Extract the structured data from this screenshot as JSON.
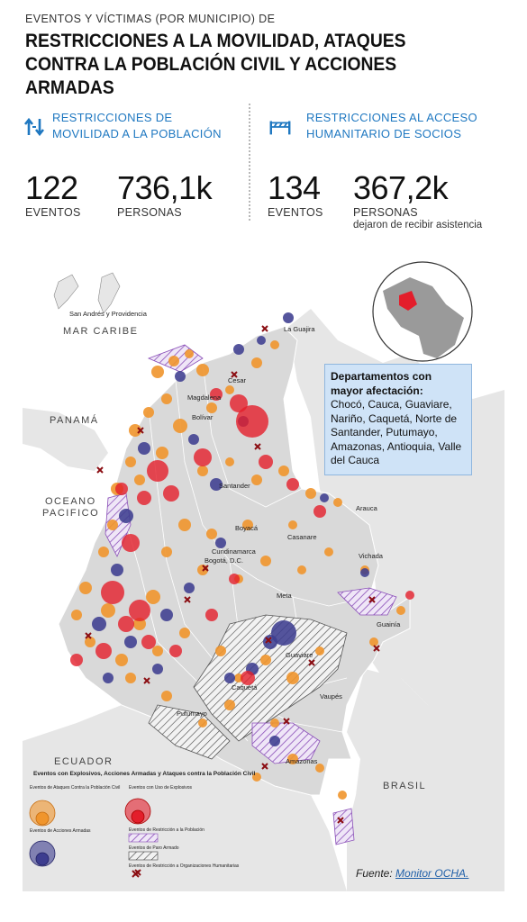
{
  "header": {
    "kicker": "EVENTOS Y VÍCTIMAS (POR MUNICIPIO) DE",
    "title": "RESTRICCIONES A LA MOVILIDAD, ATAQUES CONTRA LA POBLACIÓN CIVIL Y ACCIONES ARMADAS"
  },
  "sections": [
    {
      "icon": "mobility-arrows-icon",
      "label": "RESTRICCIONES DE MOVILIDAD A LA POBLACIÓN",
      "events_value": "122",
      "events_label": "EVENTOS",
      "people_value": "736,1k",
      "people_label": "PERSONAS"
    },
    {
      "icon": "barrier-icon",
      "label": "RESTRICCIONES AL ACCESO HUMANITARIO DE SOCIOS",
      "events_value": "134",
      "events_label": "EVENTOS",
      "people_value": "367,2k",
      "people_label": "PERSONAS",
      "people_note": "dejaron de recibir asistencia"
    }
  ],
  "map": {
    "regions": [
      "San Andrés y Providencia",
      "La Guajira",
      "Cesar",
      "Magdalena",
      "Bolívar",
      "Santander",
      "Arauca",
      "Boyacá",
      "Casanare",
      "Cundinamarca",
      "Bogotá, D.C.",
      "Vichada",
      "Meta",
      "Guainía",
      "Guaviare",
      "Vaupés",
      "Caquetá",
      "Putumayo",
      "Amazonas"
    ],
    "seas_countries": [
      "MAR CARIBE",
      "PANAMÁ",
      "OCEANO",
      "PACIFICO",
      "ECUADOR",
      "BRASIL"
    ],
    "colors": {
      "land": "#dcdcdc",
      "neighbor": "#e9e9e9",
      "attacks": "#f0952c",
      "armed": "#3d3d8f",
      "explosives": "#e31e2b",
      "restriction_hatch": "#8a4fb8",
      "armed_strike_hatch": "#333333",
      "humanitarian_x": "#8b0d12"
    }
  },
  "infobox": {
    "heading": "Departamentos con mayor afectación:",
    "body": "Chocó, Cauca, Guaviare, Nariño, Caquetá, Norte de Santander, Putumayo, Amazonas, Antioquia, Valle del Cauca"
  },
  "legend": {
    "title": "Eventos con Explosivos, Acciones Armadas y Ataques contra la Población Civil",
    "items": [
      "Eventos de Ataques Contra la Población Civil",
      "Eventos de Acciones Armadas",
      "Eventos con Uso de Explosivos",
      "Eventos de Restricción a la Población",
      "Eventos de Paro Armado",
      "Eventos de Restricción a Organizaciones Humanitarias"
    ]
  },
  "source": {
    "prefix": "Fuente: ",
    "link": "Monitor OCHA."
  }
}
